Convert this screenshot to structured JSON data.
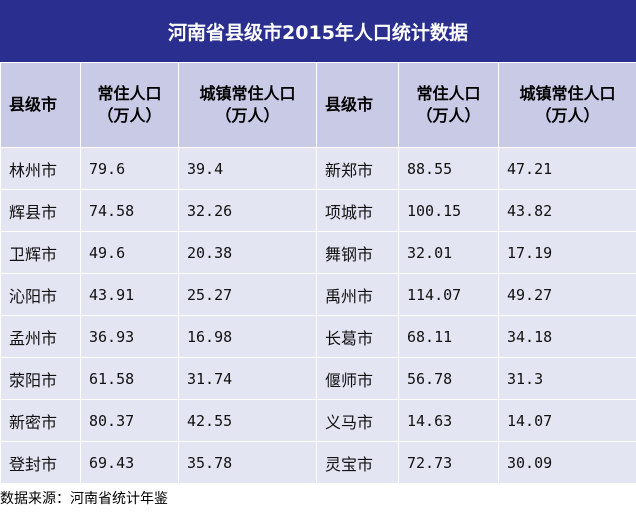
{
  "title": "河南省县级市2015年人口统计数据",
  "headers": {
    "city": "县级市",
    "resident_l1": "常住人口",
    "resident_l2": "（万人）",
    "urban_l1": "城镇常住人口",
    "urban_l2": "（万人）"
  },
  "rows": [
    {
      "c1": "林州市",
      "r1": "79.6",
      "u1": "39.4",
      "c2": "新郑市",
      "r2": "88.55",
      "u2": "47.21"
    },
    {
      "c1": "辉县市",
      "r1": "74.58",
      "u1": "32.26",
      "c2": "项城市",
      "r2": "100.15",
      "u2": "43.82"
    },
    {
      "c1": "卫辉市",
      "r1": "49.6",
      "u1": "20.38",
      "c2": "舞钢市",
      "r2": "32.01",
      "u2": "17.19"
    },
    {
      "c1": "沁阳市",
      "r1": "43.91",
      "u1": "25.27",
      "c2": "禹州市",
      "r2": "114.07",
      "u2": "49.27"
    },
    {
      "c1": "孟州市",
      "r1": "36.93",
      "u1": "16.98",
      "c2": "长葛市",
      "r2": "68.11",
      "u2": "34.18"
    },
    {
      "c1": "荥阳市",
      "r1": "61.58",
      "u1": "31.74",
      "c2": "偃师市",
      "r2": "56.78",
      "u2": "31.3"
    },
    {
      "c1": "新密市",
      "r1": "80.37",
      "u1": "42.55",
      "c2": "义马市",
      "r2": "14.63",
      "u2": "14.07"
    },
    {
      "c1": "登封市",
      "r1": "69.43",
      "u1": "35.78",
      "c2": "灵宝市",
      "r2": "72.73",
      "u2": "30.09"
    }
  ],
  "source": "数据来源：河南省统计年鉴"
}
